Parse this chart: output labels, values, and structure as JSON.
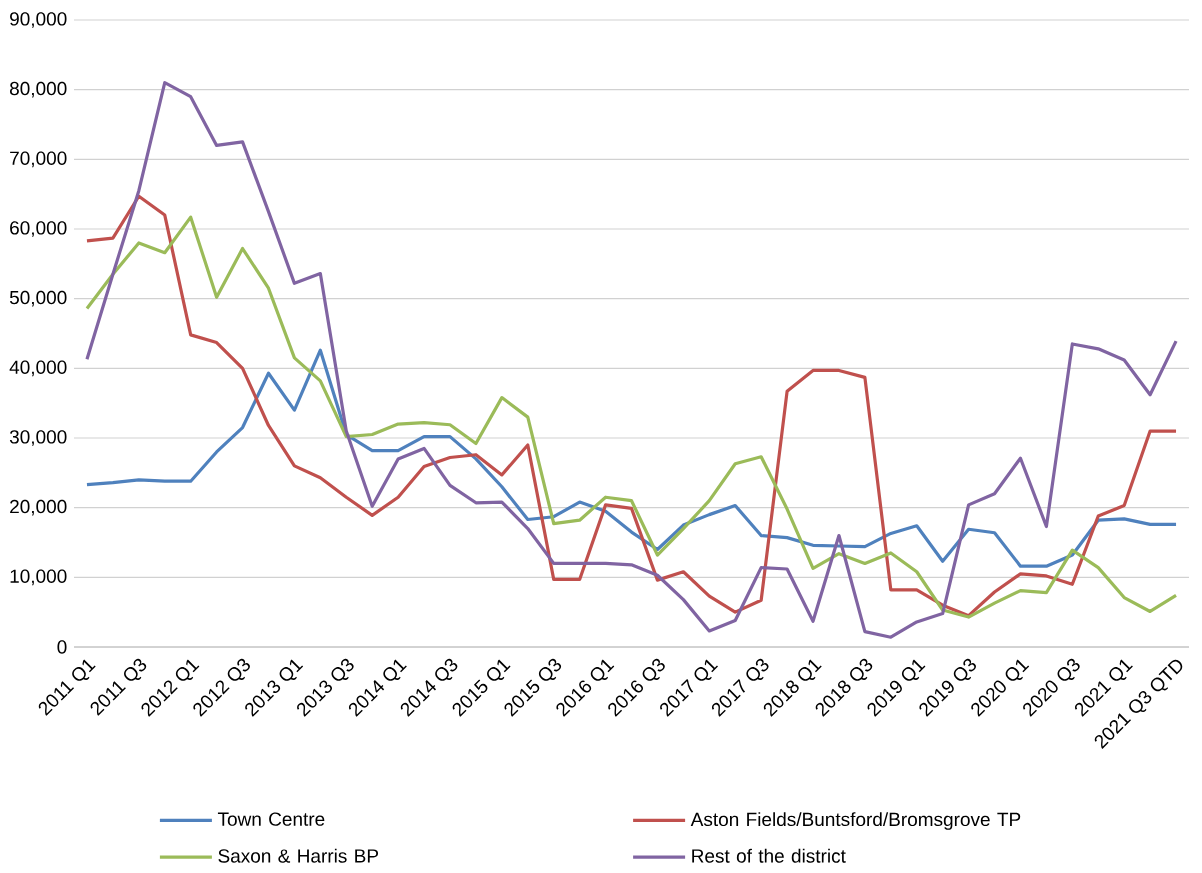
{
  "chart_data": {
    "type": "line",
    "categories": [
      "2011 Q1",
      null,
      "2011 Q3",
      null,
      "2012 Q1",
      null,
      "2012 Q3",
      null,
      "2013 Q1",
      null,
      "2013 Q3",
      null,
      "2014 Q1",
      null,
      "2014 Q3",
      null,
      "2015 Q1",
      null,
      "2015 Q3",
      null,
      "2016 Q1",
      null,
      "2016 Q3",
      null,
      "2017 Q1",
      null,
      "2017 Q3",
      null,
      "2018 Q1",
      null,
      "2018 Q3",
      null,
      "2019 Q1",
      null,
      "2019 Q3",
      null,
      "2020 Q1",
      null,
      "2020 Q3",
      null,
      "2021 Q1",
      null,
      "2021 Q3 QTD"
    ],
    "series": [
      {
        "name": "Town Centre",
        "color": "#4f81bd",
        "values": [
          23300,
          23600,
          24000,
          23800,
          23800,
          28000,
          31500,
          39300,
          34000,
          42600,
          30500,
          28200,
          28200,
          30200,
          30200,
          27000,
          23000,
          18300,
          18700,
          20800,
          19500,
          16500,
          14000,
          17500,
          19000,
          20300,
          16000,
          15700,
          14600,
          14500,
          14400,
          16300,
          17400,
          12300,
          16900,
          16400,
          11600,
          11600,
          13200,
          18200,
          18400,
          17600,
          17600
        ]
      },
      {
        "name": "Aston Fields/Buntsford/Bromsgrove TP",
        "color": "#c0504d",
        "values": [
          58300,
          58700,
          64700,
          62000,
          44800,
          43700,
          40000,
          31800,
          26000,
          24300,
          21500,
          18900,
          21500,
          25900,
          27200,
          27600,
          24700,
          29000,
          9700,
          9700,
          20400,
          19900,
          9600,
          10800,
          7300,
          5000,
          6700,
          36700,
          39700,
          39700,
          38700,
          8200,
          8200,
          6000,
          4500,
          7900,
          10500,
          10200,
          9000,
          18800,
          20300,
          31000,
          31000
        ]
      },
      {
        "name": "Saxon & Harris BP",
        "color": "#9bbb59",
        "values": [
          48600,
          53500,
          58000,
          56600,
          61700,
          50200,
          57200,
          51500,
          41500,
          38200,
          30200,
          30500,
          32000,
          32200,
          31900,
          29200,
          35800,
          33000,
          17700,
          18200,
          21500,
          21000,
          13200,
          17000,
          21000,
          26300,
          27300,
          19800,
          11300,
          13400,
          12000,
          13500,
          10800,
          5300,
          4300,
          6300,
          8100,
          7800,
          13900,
          11400,
          7100,
          5100,
          7400
        ]
      },
      {
        "name": "Rest of the district",
        "color": "#8064a2",
        "values": [
          41300,
          53500,
          65500,
          81000,
          79000,
          72000,
          72500,
          62500,
          52200,
          53600,
          31000,
          20200,
          27000,
          28500,
          23200,
          20700,
          20800,
          17000,
          12000,
          12000,
          12000,
          11800,
          10300,
          6800,
          2300,
          3800,
          11400,
          11200,
          3700,
          16000,
          2200,
          1400,
          3600,
          4800,
          20400,
          22000,
          27100,
          17300,
          43500,
          42800,
          41200,
          36200,
          43900
        ]
      }
    ],
    "ylim": [
      0,
      90000
    ],
    "yticks": [
      0,
      {
        "value": 10000,
        "label": "10,000"
      },
      {
        "value": 20000,
        "label": "20,000"
      },
      {
        "value": 30000,
        "label": "30,000"
      },
      {
        "value": 40000,
        "label": "40,000"
      },
      {
        "value": 50000,
        "label": "50,000"
      },
      {
        "value": 60000,
        "label": "60,000"
      },
      {
        "value": 70000,
        "label": "70,000"
      },
      {
        "value": 80000,
        "label": "80,000"
      },
      {
        "value": 90000,
        "label": "90,000"
      }
    ],
    "grid": "y",
    "legend": "bottom",
    "marker": "none",
    "line_style": "solid"
  }
}
